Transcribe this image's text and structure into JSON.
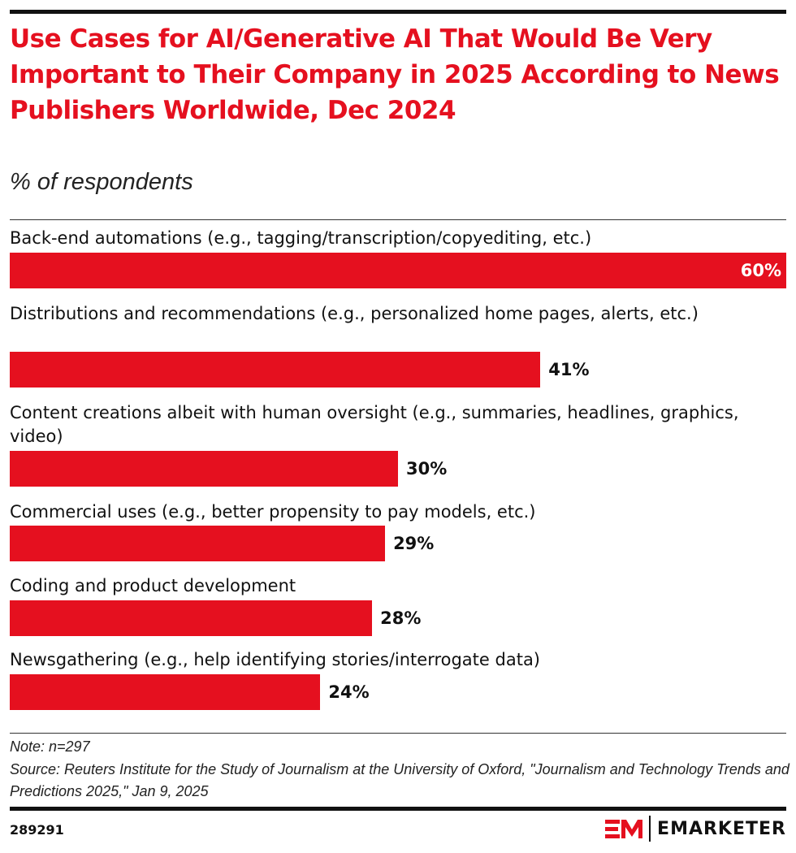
{
  "chart_data": {
    "type": "bar",
    "orientation": "horizontal",
    "title": "Use Cases for AI/Generative AI That Would Be Very Important to Their Company in 2025 According to News Publishers Worldwide, Dec 2024",
    "subtitle": "% of respondents",
    "categories": [
      "Back-end automations (e.g., tagging/transcription/copyediting, etc.)",
      "Distributions and recommendations (e.g., personalized home pages, alerts, etc.)",
      "Content creations albeit with human oversight (e.g., summaries, headlines, graphics, video)",
      "Commercial uses (e.g., better propensity to pay models, etc.)",
      "Coding and product development",
      "Newsgathering (e.g., help identifying stories/interrogate data)"
    ],
    "values": [
      60,
      41,
      30,
      29,
      28,
      24
    ],
    "value_labels": [
      "60%",
      "41%",
      "30%",
      "29%",
      "28%",
      "24%"
    ],
    "xlim": [
      0,
      60
    ],
    "grid": false,
    "bar_color": "#e5101f"
  },
  "footer": {
    "note": "Note: n=297",
    "source": "Source: Reuters Institute for the Study of Journalism at the University of Oxford, \"Journalism and Technology Trends and Predictions 2025,\" Jan 9, 2025",
    "chart_id": "289291",
    "brand": "EMARKETER"
  }
}
